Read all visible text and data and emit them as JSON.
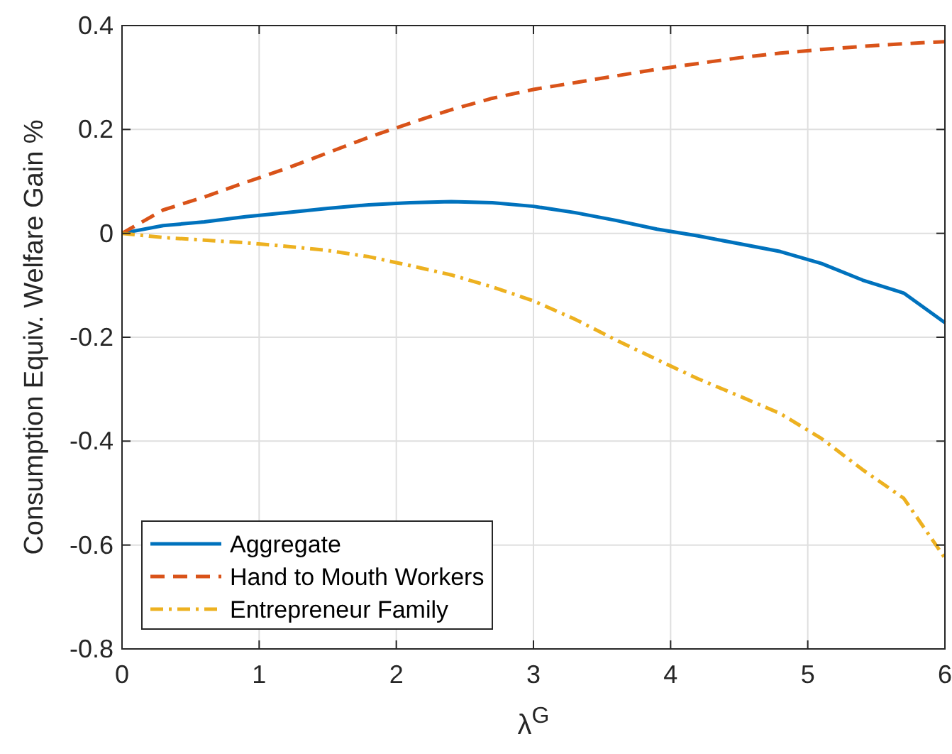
{
  "chart_data": {
    "type": "line",
    "xlabel": "λ$^{G}$",
    "ylabel": "Consumption Equiv. Welfare Gain %",
    "x": [
      0,
      0.3,
      0.6,
      0.9,
      1.2,
      1.5,
      1.8,
      2.1,
      2.4,
      2.7,
      3.0,
      3.3,
      3.6,
      3.9,
      4.2,
      4.5,
      4.8,
      5.1,
      5.4,
      5.7,
      6.0
    ],
    "series": [
      {
        "name": "Aggregate",
        "color": "#0072bd",
        "line_style": "solid",
        "values": [
          0,
          0.015,
          0.022,
          0.032,
          0.04,
          0.048,
          0.055,
          0.059,
          0.061,
          0.059,
          0.052,
          0.04,
          0.025,
          0.008,
          -0.005,
          -0.02,
          -0.035,
          -0.058,
          -0.09,
          -0.115,
          -0.172
        ]
      },
      {
        "name": "Hand to Mouth Workers",
        "color": "#d95319",
        "line_style": "dashed",
        "values": [
          0,
          0.045,
          0.07,
          0.098,
          0.125,
          0.155,
          0.185,
          0.212,
          0.238,
          0.26,
          0.277,
          0.29,
          0.303,
          0.316,
          0.327,
          0.338,
          0.347,
          0.354,
          0.36,
          0.365,
          0.369
        ]
      },
      {
        "name": "Entrepreneur Family",
        "color": "#edb120",
        "line_style": "dashdot",
        "values": [
          0,
          -0.008,
          -0.013,
          -0.018,
          -0.025,
          -0.033,
          -0.045,
          -0.062,
          -0.08,
          -0.103,
          -0.13,
          -0.165,
          -0.205,
          -0.243,
          -0.28,
          -0.313,
          -0.347,
          -0.395,
          -0.455,
          -0.51,
          -0.625
        ]
      }
    ],
    "xlim": [
      0,
      6
    ],
    "xticks": [
      0,
      1,
      2,
      3,
      4,
      5,
      6
    ],
    "ylim": [
      -0.8,
      0.4
    ],
    "yticks": [
      -0.8,
      -0.6,
      -0.4,
      -0.2,
      0,
      0.2,
      0.4
    ],
    "grid": true,
    "legend": "bottom left"
  }
}
